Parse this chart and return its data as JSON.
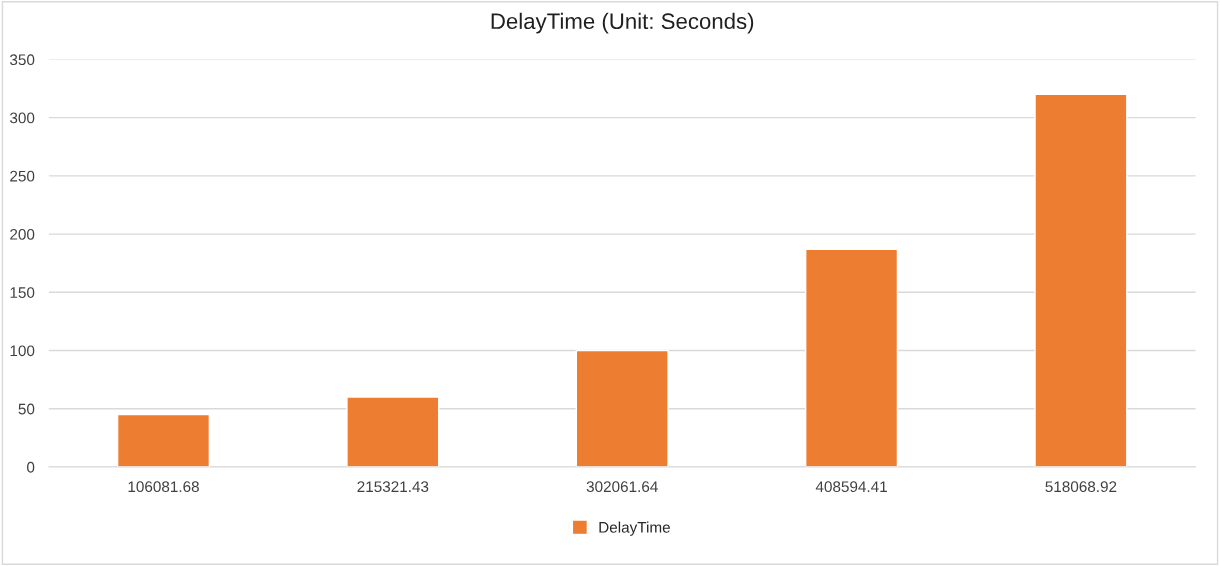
{
  "chart_data": {
    "type": "bar",
    "title": "DelayTime (Unit: Seconds)",
    "categories": [
      "106081.68",
      "215321.43",
      "302061.64",
      "408594.41",
      "518068.92"
    ],
    "series": [
      {
        "name": "DelayTime",
        "color": "#ed7d31",
        "values": [
          45,
          60,
          100,
          187,
          320
        ]
      }
    ],
    "ylim": [
      0,
      350
    ],
    "yticks": [
      0,
      50,
      100,
      150,
      200,
      250,
      300,
      350
    ],
    "grid": "y",
    "legend": "bottom"
  }
}
